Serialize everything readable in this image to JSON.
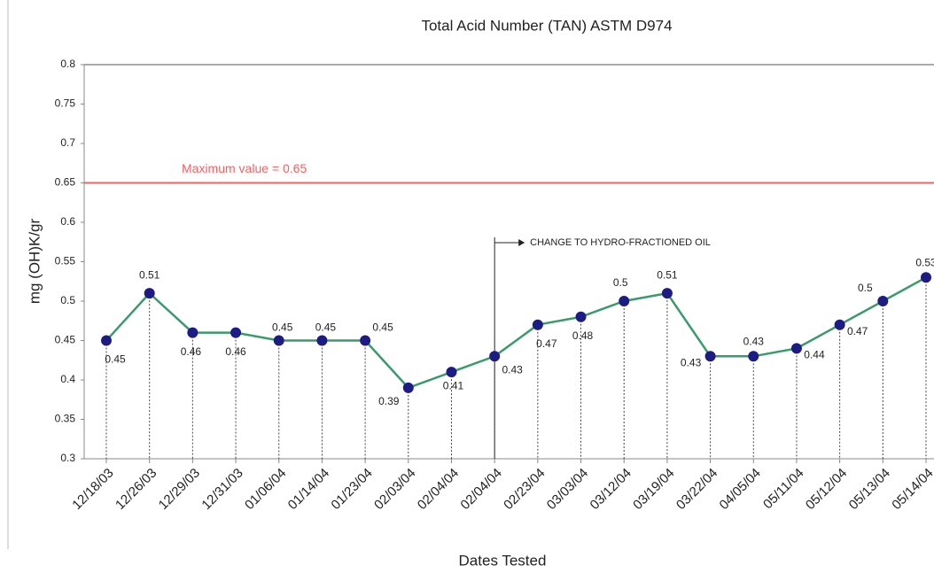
{
  "chart_data": {
    "type": "line",
    "title": "Total Acid Number (TAN) ASTM D974",
    "x_label": "Dates Tested",
    "y_label": "mg (OH)K/gr",
    "categories": [
      "12/18/03",
      "12/26/03",
      "12/29/03",
      "12/31/03",
      "01/06/04",
      "01/14/04",
      "01/23/04",
      "02/03/04",
      "02/04/04",
      "02/04/04",
      "02/23/04",
      "03/03/04",
      "03/12/04",
      "03/19/04",
      "03/22/04",
      "04/05/04",
      "05/11/04",
      "05/12/04",
      "05/13/04",
      "05/14/04"
    ],
    "series": [
      {
        "name": "TAN",
        "color": "#3b9a6b",
        "marker_color": "#1c1c84",
        "values": [
          0.45,
          0.51,
          0.46,
          0.46,
          0.45,
          0.45,
          0.45,
          0.39,
          0.41,
          0.43,
          0.47,
          0.48,
          0.5,
          0.51,
          0.43,
          0.43,
          0.44,
          0.47,
          0.5,
          0.53
        ]
      }
    ],
    "ylim": [
      0.3,
      0.8
    ],
    "yticks": [
      0.3,
      0.35,
      0.4,
      0.45,
      0.5,
      0.55,
      0.6,
      0.65,
      0.7,
      0.75,
      0.8
    ],
    "reference_line": {
      "value": 0.65,
      "label": "Maximum value = 0.65",
      "color": "#f06464"
    },
    "annotation": "CHANGE TO HYDRO-FRACTIONED OIL"
  }
}
